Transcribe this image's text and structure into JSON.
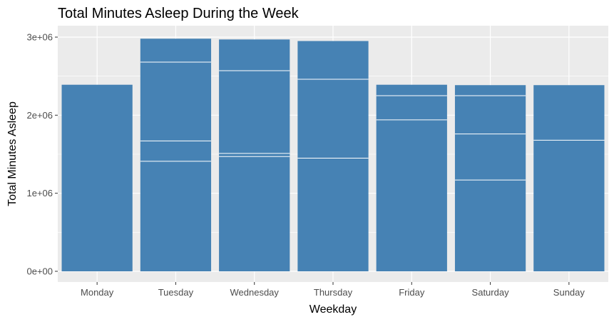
{
  "chart_data": {
    "type": "bar",
    "stacked": true,
    "title": "Total Minutes Asleep During the Week",
    "xlabel": "Weekday",
    "ylabel": "Total Minutes Asleep",
    "ylim": [
      0,
      3150000
    ],
    "yticks": [
      0,
      1000000,
      2000000,
      3000000
    ],
    "ytick_labels": [
      "0e+00",
      "1e+06",
      "2e+06",
      "3e+06"
    ],
    "grid": true,
    "bar_color": "#4682b4",
    "panel_color": "#ebebeb",
    "categories": [
      "Monday",
      "Tuesday",
      "Wednesday",
      "Thursday",
      "Friday",
      "Saturday",
      "Sunday"
    ],
    "totals": [
      2390000,
      2980000,
      2970000,
      2950000,
      2390000,
      2385000,
      2385000
    ],
    "segment_boundaries": [
      [],
      [
        1410000,
        1670000,
        2680000
      ],
      [
        1470000,
        1510000,
        2570000
      ],
      [
        1450000,
        2460000
      ],
      [
        1940000,
        2250000
      ],
      [
        1170000,
        1760000,
        2250000
      ],
      [
        1680000
      ]
    ]
  }
}
